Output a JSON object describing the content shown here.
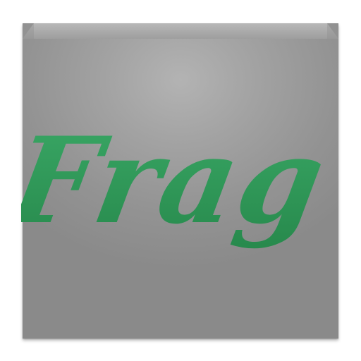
{
  "app_icon": {
    "label": "Frag",
    "colors": {
      "text_green": "#35a060",
      "text_green_dark": "#2a8a4e",
      "box_light": "#b3b3b3",
      "box_dark": "#8a8a8a"
    }
  }
}
